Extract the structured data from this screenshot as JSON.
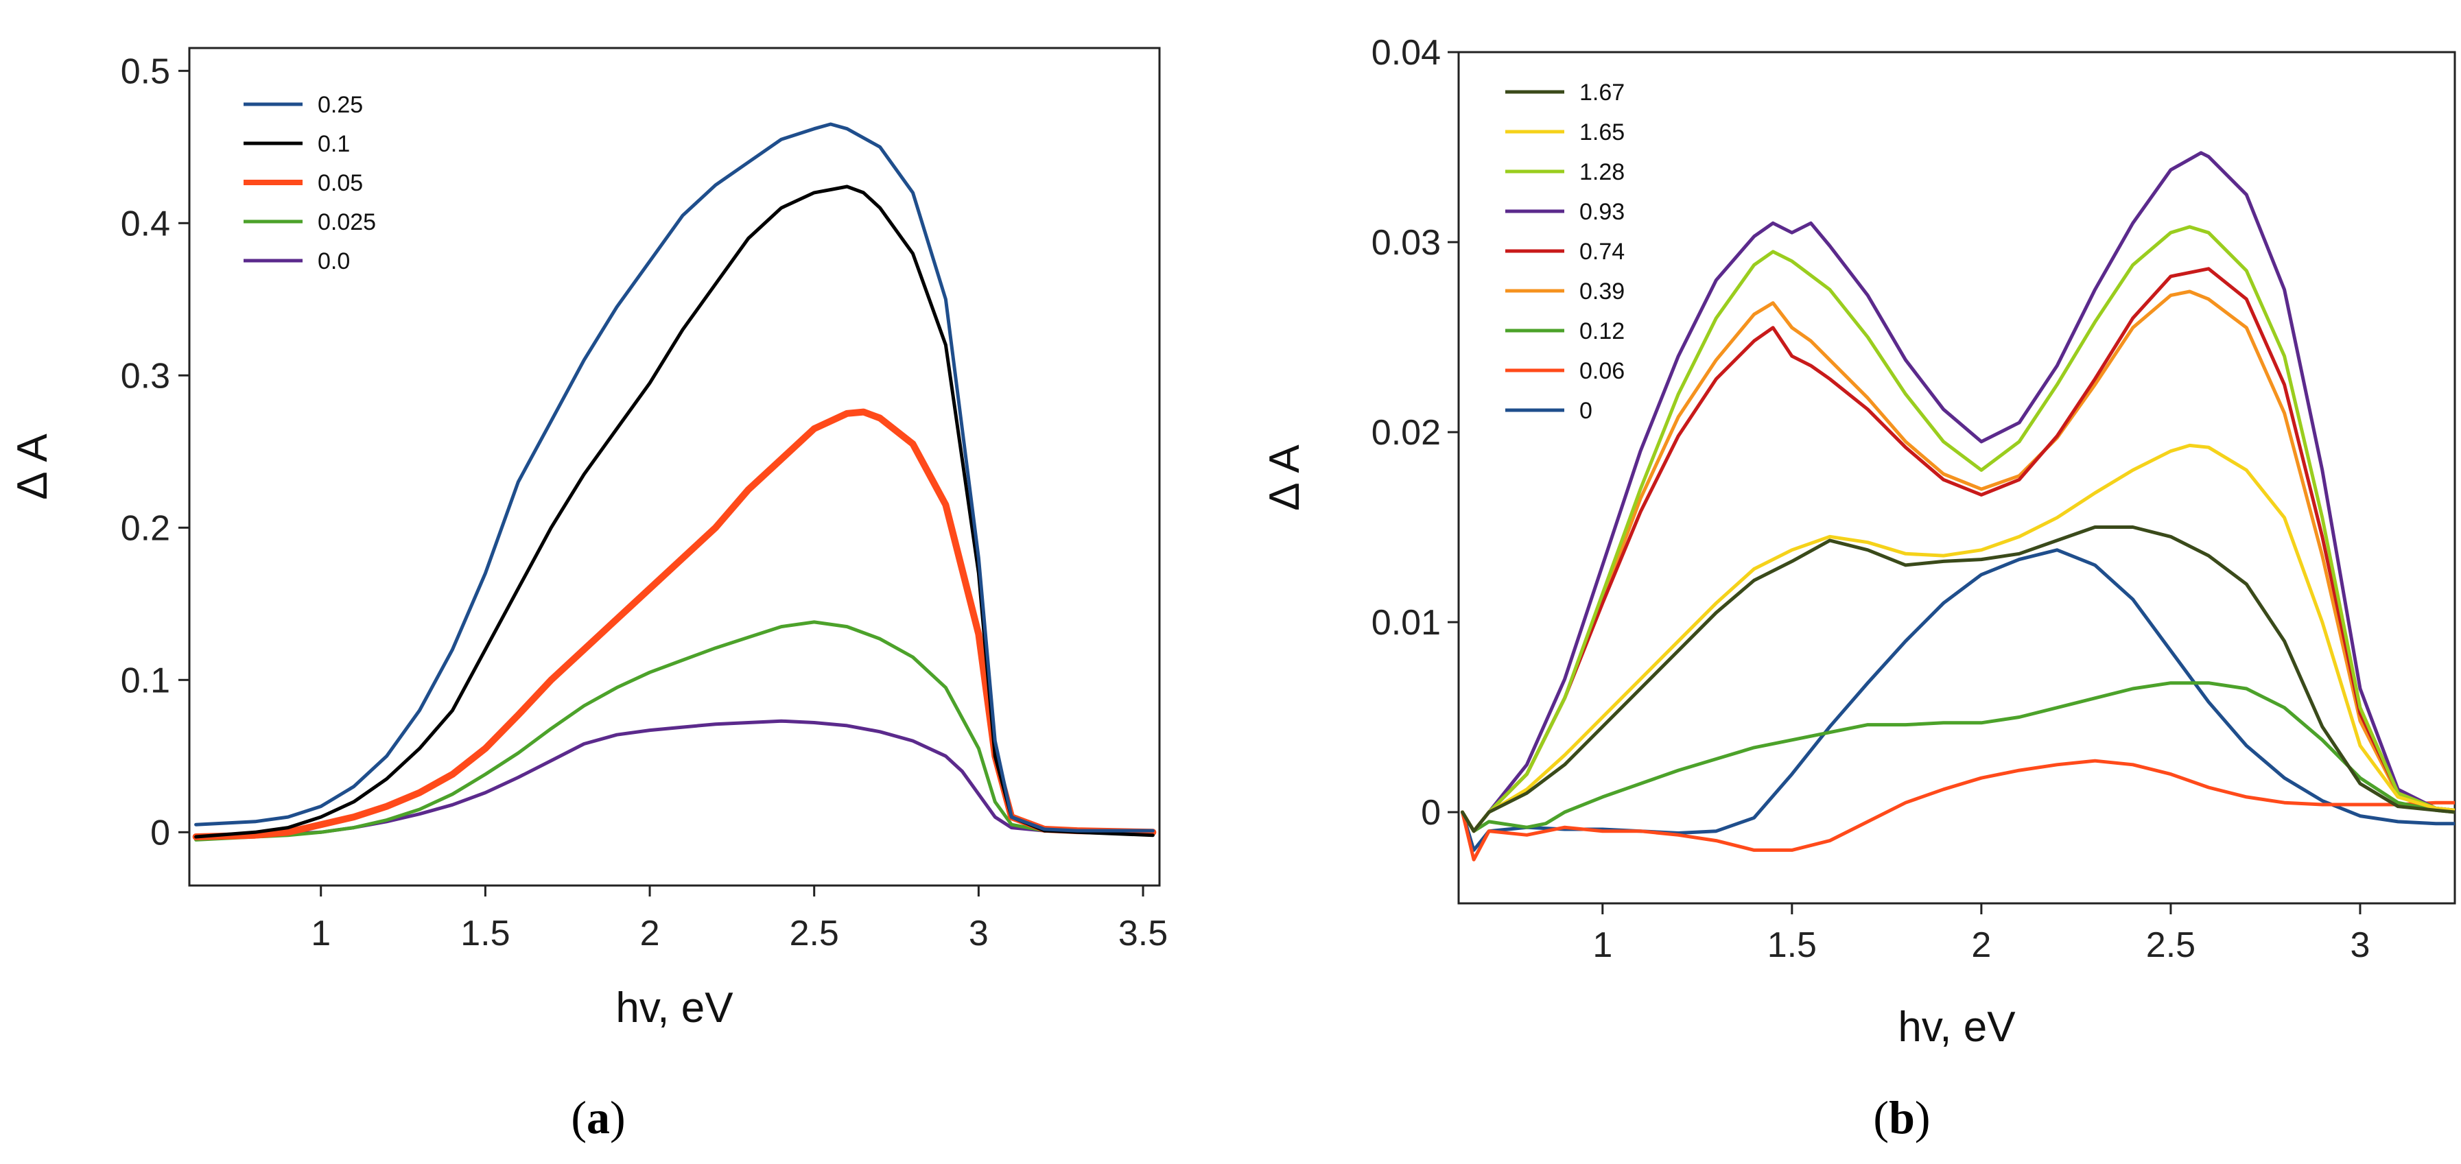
{
  "chart_data": [
    {
      "type": "line",
      "caption": "a",
      "xlabel": "hv, eV",
      "ylabel": "Δ A",
      "xlim": [
        0.6,
        3.55
      ],
      "ylim": [
        -0.035,
        0.515
      ],
      "xticks": [
        1,
        1.5,
        2,
        2.5,
        3,
        3.5
      ],
      "xtick_labels": [
        "1",
        "1.5",
        "2",
        "2.5",
        "3",
        "3.5"
      ],
      "yticks": [
        0,
        0.1,
        0.2,
        0.3,
        0.4,
        0.5
      ],
      "ytick_labels": [
        "0",
        "0.1",
        "0.2",
        "0.3",
        "0.4",
        "0.5"
      ],
      "legend_position": "top-left",
      "series": [
        {
          "name": "0.25",
          "color": "#1f4e8c",
          "x": [
            0.62,
            0.8,
            0.9,
            1.0,
            1.1,
            1.2,
            1.3,
            1.4,
            1.5,
            1.6,
            1.7,
            1.8,
            1.9,
            2.0,
            2.1,
            2.2,
            2.3,
            2.4,
            2.5,
            2.55,
            2.6,
            2.7,
            2.8,
            2.9,
            3.0,
            3.05,
            3.1,
            3.2,
            3.3,
            3.53
          ],
          "y": [
            0.005,
            0.007,
            0.01,
            0.017,
            0.03,
            0.05,
            0.08,
            0.12,
            0.17,
            0.23,
            0.27,
            0.31,
            0.345,
            0.375,
            0.405,
            0.425,
            0.44,
            0.455,
            0.462,
            0.465,
            0.462,
            0.45,
            0.42,
            0.35,
            0.18,
            0.06,
            0.01,
            0.002,
            0.001,
            0.001
          ]
        },
        {
          "name": "0.1",
          "color": "#000000",
          "x": [
            0.62,
            0.8,
            0.9,
            1.0,
            1.1,
            1.2,
            1.3,
            1.4,
            1.5,
            1.6,
            1.7,
            1.8,
            1.9,
            2.0,
            2.1,
            2.2,
            2.3,
            2.4,
            2.5,
            2.55,
            2.6,
            2.65,
            2.7,
            2.8,
            2.9,
            3.0,
            3.05,
            3.1,
            3.2,
            3.3,
            3.53
          ],
          "y": [
            -0.003,
            0.0,
            0.003,
            0.01,
            0.02,
            0.035,
            0.055,
            0.08,
            0.12,
            0.16,
            0.2,
            0.235,
            0.265,
            0.295,
            0.33,
            0.36,
            0.39,
            0.41,
            0.42,
            0.422,
            0.424,
            0.42,
            0.41,
            0.38,
            0.32,
            0.17,
            0.05,
            0.01,
            0.001,
            0.0,
            -0.002
          ]
        },
        {
          "name": "0.05",
          "color": "#ff4a1a",
          "x": [
            0.62,
            0.8,
            0.9,
            1.0,
            1.1,
            1.2,
            1.3,
            1.4,
            1.5,
            1.6,
            1.7,
            1.8,
            1.9,
            2.0,
            2.1,
            2.2,
            2.3,
            2.4,
            2.5,
            2.6,
            2.65,
            2.7,
            2.8,
            2.9,
            3.0,
            3.05,
            3.1,
            3.2,
            3.3,
            3.53
          ],
          "y": [
            -0.003,
            -0.002,
            0.0,
            0.005,
            0.01,
            0.017,
            0.026,
            0.038,
            0.055,
            0.077,
            0.1,
            0.12,
            0.14,
            0.16,
            0.18,
            0.2,
            0.225,
            0.245,
            0.265,
            0.275,
            0.276,
            0.272,
            0.255,
            0.215,
            0.13,
            0.05,
            0.01,
            0.002,
            0.001,
            0.0
          ]
        },
        {
          "name": "0.025",
          "color": "#4ca22a",
          "x": [
            0.62,
            0.8,
            0.9,
            1.0,
            1.1,
            1.2,
            1.3,
            1.4,
            1.5,
            1.6,
            1.7,
            1.8,
            1.9,
            2.0,
            2.1,
            2.2,
            2.3,
            2.4,
            2.5,
            2.6,
            2.7,
            2.8,
            2.9,
            3.0,
            3.05,
            3.1,
            3.2,
            3.3,
            3.53
          ],
          "y": [
            -0.005,
            -0.003,
            -0.002,
            0.0,
            0.003,
            0.008,
            0.015,
            0.025,
            0.038,
            0.052,
            0.068,
            0.083,
            0.095,
            0.105,
            0.113,
            0.121,
            0.128,
            0.135,
            0.138,
            0.135,
            0.127,
            0.115,
            0.095,
            0.055,
            0.02,
            0.005,
            0.001,
            0.0,
            -0.001
          ]
        },
        {
          "name": "0.0",
          "color": "#5b2a8c",
          "x": [
            0.62,
            0.8,
            0.9,
            1.0,
            1.1,
            1.2,
            1.3,
            1.4,
            1.5,
            1.6,
            1.7,
            1.8,
            1.9,
            2.0,
            2.1,
            2.2,
            2.3,
            2.4,
            2.5,
            2.6,
            2.7,
            2.8,
            2.9,
            2.95,
            3.0,
            3.05,
            3.1,
            3.2,
            3.3,
            3.53
          ],
          "y": [
            -0.004,
            -0.002,
            -0.001,
            0.0,
            0.003,
            0.007,
            0.012,
            0.018,
            0.026,
            0.036,
            0.047,
            0.058,
            0.064,
            0.067,
            0.069,
            0.071,
            0.072,
            0.073,
            0.072,
            0.07,
            0.066,
            0.06,
            0.05,
            0.04,
            0.025,
            0.01,
            0.003,
            0.001,
            0.0,
            -0.001
          ]
        }
      ]
    },
    {
      "type": "line",
      "caption": "b",
      "xlabel": "hv, eV",
      "ylabel": "Δ A",
      "xlim": [
        0.62,
        3.25
      ],
      "ylim": [
        -0.0048,
        0.04
      ],
      "xticks": [
        1,
        1.5,
        2,
        2.5,
        3
      ],
      "xtick_labels": [
        "1",
        "1.5",
        "2",
        "2.5",
        "3"
      ],
      "yticks": [
        0,
        0.01,
        0.02,
        0.03,
        0.04
      ],
      "ytick_labels": [
        "0",
        "0.01",
        "0.02",
        "0.03",
        "0.04"
      ],
      "legend_position": "top-left",
      "series": [
        {
          "name": "1.67",
          "color": "#3a4a1a",
          "x": [
            0.63,
            0.66,
            0.7,
            0.8,
            0.9,
            1.0,
            1.1,
            1.2,
            1.3,
            1.4,
            1.5,
            1.6,
            1.7,
            1.8,
            1.9,
            2.0,
            2.1,
            2.2,
            2.3,
            2.4,
            2.5,
            2.6,
            2.7,
            2.8,
            2.9,
            3.0,
            3.1,
            3.2,
            3.25
          ],
          "y": [
            0.0,
            -0.001,
            0.0,
            0.001,
            0.0025,
            0.0045,
            0.0065,
            0.0085,
            0.0105,
            0.0122,
            0.0132,
            0.0143,
            0.0138,
            0.013,
            0.0132,
            0.0133,
            0.0136,
            0.0143,
            0.015,
            0.015,
            0.0145,
            0.0135,
            0.012,
            0.009,
            0.0045,
            0.0015,
            0.0003,
            0.0001,
            0.0
          ]
        },
        {
          "name": "1.65",
          "color": "#f5d21a",
          "x": [
            0.63,
            0.66,
            0.7,
            0.8,
            0.9,
            1.0,
            1.1,
            1.2,
            1.3,
            1.4,
            1.5,
            1.6,
            1.7,
            1.8,
            1.9,
            2.0,
            2.1,
            2.2,
            2.3,
            2.4,
            2.5,
            2.55,
            2.6,
            2.7,
            2.8,
            2.9,
            3.0,
            3.1,
            3.2,
            3.25
          ],
          "y": [
            0.0,
            -0.001,
            0.0,
            0.0012,
            0.003,
            0.005,
            0.007,
            0.009,
            0.011,
            0.0128,
            0.0138,
            0.0145,
            0.0142,
            0.0136,
            0.0135,
            0.0138,
            0.0145,
            0.0155,
            0.0168,
            0.018,
            0.019,
            0.0193,
            0.0192,
            0.018,
            0.0155,
            0.01,
            0.0035,
            0.0008,
            0.0002,
            0.0001
          ]
        },
        {
          "name": "1.28",
          "color": "#9acd1e",
          "x": [
            0.63,
            0.66,
            0.7,
            0.8,
            0.9,
            1.0,
            1.1,
            1.2,
            1.3,
            1.4,
            1.45,
            1.5,
            1.6,
            1.7,
            1.8,
            1.9,
            2.0,
            2.1,
            2.2,
            2.3,
            2.4,
            2.5,
            2.55,
            2.6,
            2.7,
            2.8,
            2.9,
            3.0,
            3.1,
            3.2,
            3.25
          ],
          "y": [
            0.0,
            -0.001,
            0.0,
            0.002,
            0.006,
            0.0115,
            0.017,
            0.022,
            0.026,
            0.0288,
            0.0295,
            0.029,
            0.0275,
            0.025,
            0.022,
            0.0195,
            0.018,
            0.0195,
            0.0225,
            0.0258,
            0.0288,
            0.0305,
            0.0308,
            0.0305,
            0.0285,
            0.024,
            0.0155,
            0.0055,
            0.001,
            0.0002,
            0.0001
          ]
        },
        {
          "name": "0.93",
          "color": "#5b2a8c",
          "x": [
            0.63,
            0.66,
            0.7,
            0.8,
            0.9,
            1.0,
            1.1,
            1.2,
            1.3,
            1.4,
            1.45,
            1.5,
            1.55,
            1.6,
            1.7,
            1.8,
            1.9,
            2.0,
            2.1,
            2.2,
            2.3,
            2.4,
            2.5,
            2.58,
            2.6,
            2.7,
            2.8,
            2.9,
            3.0,
            3.1,
            3.2,
            3.25
          ],
          "y": [
            0.0,
            -0.001,
            0.0,
            0.0025,
            0.007,
            0.013,
            0.019,
            0.024,
            0.028,
            0.0303,
            0.031,
            0.0305,
            0.031,
            0.0298,
            0.0272,
            0.0238,
            0.0212,
            0.0195,
            0.0205,
            0.0235,
            0.0275,
            0.031,
            0.0338,
            0.0347,
            0.0345,
            0.0325,
            0.0275,
            0.018,
            0.0065,
            0.0012,
            0.0002,
            0.0001
          ]
        },
        {
          "name": "0.74",
          "color": "#c81a1a",
          "x": [
            0.63,
            0.66,
            0.7,
            0.8,
            0.9,
            1.0,
            1.1,
            1.2,
            1.3,
            1.4,
            1.45,
            1.5,
            1.55,
            1.6,
            1.7,
            1.8,
            1.9,
            2.0,
            2.1,
            2.2,
            2.3,
            2.4,
            2.5,
            2.6,
            2.7,
            2.8,
            2.9,
            3.0,
            3.1,
            3.2,
            3.25
          ],
          "y": [
            0.0,
            -0.001,
            0.0,
            0.002,
            0.006,
            0.011,
            0.0158,
            0.0198,
            0.0228,
            0.0248,
            0.0255,
            0.024,
            0.0235,
            0.0228,
            0.0212,
            0.0192,
            0.0175,
            0.0167,
            0.0175,
            0.0198,
            0.0228,
            0.026,
            0.0282,
            0.0286,
            0.027,
            0.0225,
            0.0145,
            0.0052,
            0.001,
            0.0002,
            0.0001
          ]
        },
        {
          "name": "0.39",
          "color": "#f5921e",
          "x": [
            0.63,
            0.66,
            0.7,
            0.8,
            0.9,
            1.0,
            1.1,
            1.2,
            1.3,
            1.4,
            1.45,
            1.5,
            1.55,
            1.6,
            1.7,
            1.8,
            1.9,
            2.0,
            2.1,
            2.2,
            2.3,
            2.4,
            2.5,
            2.55,
            2.6,
            2.7,
            2.8,
            2.9,
            3.0,
            3.1,
            3.2,
            3.25
          ],
          "y": [
            0.0,
            -0.001,
            0.0,
            0.002,
            0.006,
            0.0112,
            0.0165,
            0.0208,
            0.0238,
            0.0262,
            0.0268,
            0.0255,
            0.0248,
            0.0238,
            0.0218,
            0.0195,
            0.0178,
            0.017,
            0.0177,
            0.0197,
            0.0225,
            0.0255,
            0.0272,
            0.0274,
            0.027,
            0.0255,
            0.021,
            0.0135,
            0.0048,
            0.0009,
            0.0002,
            0.0001
          ]
        },
        {
          "name": "0.12",
          "color": "#4ca22a",
          "x": [
            0.63,
            0.66,
            0.7,
            0.8,
            0.85,
            0.9,
            1.0,
            1.1,
            1.2,
            1.3,
            1.4,
            1.5,
            1.6,
            1.7,
            1.8,
            1.9,
            2.0,
            2.1,
            2.2,
            2.3,
            2.4,
            2.5,
            2.6,
            2.7,
            2.8,
            2.9,
            3.0,
            3.1,
            3.2,
            3.25
          ],
          "y": [
            0.0,
            -0.001,
            -0.0005,
            -0.0008,
            -0.0006,
            0.0,
            0.0008,
            0.0015,
            0.0022,
            0.0028,
            0.0034,
            0.0038,
            0.0042,
            0.0046,
            0.0046,
            0.0047,
            0.0047,
            0.005,
            0.0055,
            0.006,
            0.0065,
            0.0068,
            0.0068,
            0.0065,
            0.0055,
            0.0038,
            0.0018,
            0.0005,
            0.0001,
            0.0
          ]
        },
        {
          "name": "0.06",
          "color": "#ff4a1a",
          "x": [
            0.63,
            0.66,
            0.7,
            0.8,
            0.9,
            1.0,
            1.1,
            1.2,
            1.3,
            1.4,
            1.5,
            1.6,
            1.7,
            1.8,
            1.9,
            2.0,
            2.1,
            2.2,
            2.3,
            2.4,
            2.5,
            2.6,
            2.7,
            2.8,
            2.9,
            3.0,
            3.1,
            3.2,
            3.25
          ],
          "y": [
            0.0,
            -0.0025,
            -0.001,
            -0.0012,
            -0.0008,
            -0.001,
            -0.001,
            -0.0012,
            -0.0015,
            -0.002,
            -0.002,
            -0.0015,
            -0.0005,
            0.0005,
            0.0012,
            0.0018,
            0.0022,
            0.0025,
            0.0027,
            0.0025,
            0.002,
            0.0013,
            0.0008,
            0.0005,
            0.0004,
            0.0004,
            0.0004,
            0.0005,
            0.0005
          ]
        },
        {
          "name": "0",
          "color": "#1f4e8c",
          "x": [
            0.63,
            0.66,
            0.7,
            0.8,
            0.9,
            1.0,
            1.1,
            1.2,
            1.3,
            1.4,
            1.5,
            1.6,
            1.7,
            1.8,
            1.9,
            2.0,
            2.1,
            2.2,
            2.3,
            2.4,
            2.5,
            2.6,
            2.7,
            2.8,
            2.9,
            3.0,
            3.1,
            3.2,
            3.25
          ],
          "y": [
            0.0,
            -0.002,
            -0.001,
            -0.0008,
            -0.0009,
            -0.0009,
            -0.001,
            -0.0011,
            -0.001,
            -0.0003,
            0.002,
            0.0045,
            0.0068,
            0.009,
            0.011,
            0.0125,
            0.0133,
            0.0138,
            0.013,
            0.0112,
            0.0085,
            0.0058,
            0.0035,
            0.0018,
            0.0006,
            -0.0002,
            -0.0005,
            -0.0006,
            -0.0006
          ]
        }
      ]
    }
  ]
}
